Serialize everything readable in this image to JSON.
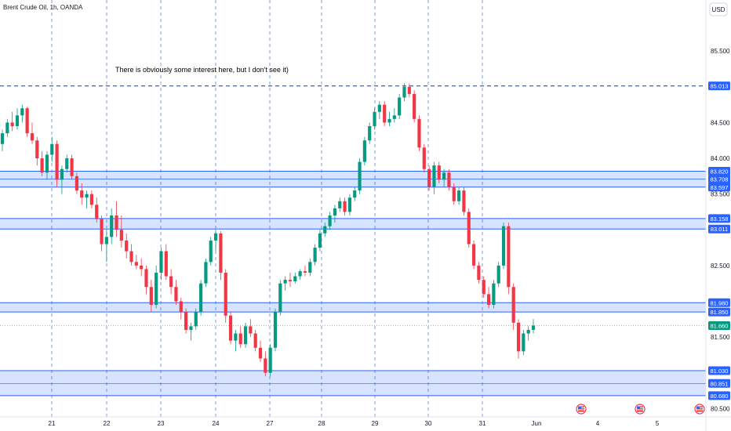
{
  "chart_data": {
    "type": "candlestick",
    "title": "Brent Crude Oil, 1h, OANDA",
    "currency": "USD",
    "annotation": "There is obviously some interest here, but I don't see it)",
    "x_ticks": [
      "21",
      "22",
      "23",
      "24",
      "27",
      "28",
      "29",
      "30",
      "31",
      "Jun",
      "4",
      "5"
    ],
    "y_ticks": [
      "80.500",
      "81.500",
      "82.500",
      "83.500",
      "84.000",
      "84.500",
      "85.500"
    ],
    "ylim": [
      80.35,
      86.05
    ],
    "levels": {
      "dashed": {
        "value": 85.013,
        "label": "85.013"
      },
      "zones": [
        {
          "top": 83.82,
          "bottom": 83.597,
          "mid": 83.708,
          "labels": [
            "83.820",
            "83.708",
            "83.597"
          ]
        },
        {
          "top": 83.158,
          "bottom": 83.011,
          "labels": [
            "83.158",
            "83.011"
          ]
        },
        {
          "top": 81.98,
          "bottom": 81.85,
          "labels": [
            "81.980",
            "81.850"
          ]
        },
        {
          "top": 81.03,
          "bottom": 80.68,
          "mid": 80.851,
          "labels": [
            "81.030",
            "80.851",
            "80.680"
          ]
        }
      ]
    },
    "last_price": {
      "value": 81.66,
      "label": "81.660"
    },
    "events_count": 3,
    "candles": [
      [
        84.2,
        84.4,
        84.1,
        84.35
      ],
      [
        84.35,
        84.55,
        84.3,
        84.5
      ],
      [
        84.5,
        84.65,
        84.38,
        84.45
      ],
      [
        84.45,
        84.7,
        84.4,
        84.6
      ],
      [
        84.6,
        84.75,
        84.5,
        84.7
      ],
      [
        84.7,
        84.72,
        84.3,
        84.35
      ],
      [
        84.35,
        84.5,
        84.2,
        84.25
      ],
      [
        84.25,
        84.3,
        83.9,
        84.0
      ],
      [
        84.0,
        84.1,
        83.75,
        83.8
      ],
      [
        83.8,
        84.1,
        83.7,
        84.05
      ],
      [
        84.05,
        84.3,
        83.95,
        84.2
      ],
      [
        84.2,
        84.25,
        83.6,
        83.7
      ],
      [
        83.7,
        83.9,
        83.5,
        83.85
      ],
      [
        83.85,
        84.05,
        83.8,
        84.0
      ],
      [
        84.0,
        84.05,
        83.7,
        83.75
      ],
      [
        83.75,
        83.8,
        83.5,
        83.55
      ],
      [
        83.55,
        83.65,
        83.35,
        83.45
      ],
      [
        83.45,
        83.55,
        83.3,
        83.5
      ],
      [
        83.5,
        83.55,
        83.3,
        83.35
      ],
      [
        83.35,
        83.45,
        83.1,
        83.15
      ],
      [
        83.15,
        83.2,
        82.7,
        82.8
      ],
      [
        82.8,
        83.0,
        82.55,
        82.9
      ],
      [
        82.9,
        83.3,
        82.8,
        83.2
      ],
      [
        83.2,
        83.4,
        82.9,
        83.0
      ],
      [
        83.0,
        83.2,
        82.75,
        82.85
      ],
      [
        82.85,
        82.95,
        82.6,
        82.7
      ],
      [
        82.7,
        82.8,
        82.5,
        82.55
      ],
      [
        82.55,
        82.65,
        82.45,
        82.5
      ],
      [
        82.5,
        82.6,
        82.35,
        82.45
      ],
      [
        82.45,
        82.5,
        82.1,
        82.2
      ],
      [
        82.2,
        82.3,
        81.85,
        81.95
      ],
      [
        81.95,
        82.5,
        81.9,
        82.4
      ],
      [
        82.4,
        82.75,
        82.3,
        82.7
      ],
      [
        82.7,
        82.8,
        82.3,
        82.35
      ],
      [
        82.35,
        82.45,
        82.1,
        82.2
      ],
      [
        82.2,
        82.3,
        81.95,
        82.0
      ],
      [
        82.0,
        82.05,
        81.75,
        81.85
      ],
      [
        81.85,
        81.9,
        81.55,
        81.6
      ],
      [
        81.6,
        81.7,
        81.45,
        81.65
      ],
      [
        81.65,
        81.9,
        81.6,
        81.85
      ],
      [
        81.85,
        82.3,
        81.8,
        82.25
      ],
      [
        82.25,
        82.6,
        82.2,
        82.55
      ],
      [
        82.55,
        82.9,
        82.5,
        82.85
      ],
      [
        82.85,
        83.0,
        82.7,
        82.95
      ],
      [
        82.95,
        82.98,
        82.3,
        82.4
      ],
      [
        82.4,
        82.45,
        81.7,
        81.8
      ],
      [
        81.8,
        81.85,
        81.4,
        81.45
      ],
      [
        81.45,
        81.6,
        81.3,
        81.55
      ],
      [
        81.55,
        81.65,
        81.35,
        81.4
      ],
      [
        81.4,
        81.7,
        81.35,
        81.65
      ],
      [
        81.65,
        81.75,
        81.5,
        81.55
      ],
      [
        81.55,
        81.6,
        81.3,
        81.35
      ],
      [
        81.35,
        81.45,
        81.15,
        81.2
      ],
      [
        81.2,
        81.3,
        80.95,
        81.0
      ],
      [
        81.0,
        81.4,
        80.95,
        81.35
      ],
      [
        81.35,
        81.9,
        81.3,
        81.85
      ],
      [
        81.85,
        82.3,
        81.8,
        82.25
      ],
      [
        82.25,
        82.35,
        82.15,
        82.3
      ],
      [
        82.3,
        82.4,
        82.2,
        82.28
      ],
      [
        82.28,
        82.4,
        82.25,
        82.35
      ],
      [
        82.35,
        82.45,
        82.3,
        82.42
      ],
      [
        82.42,
        82.5,
        82.35,
        82.4
      ],
      [
        82.4,
        82.6,
        82.35,
        82.55
      ],
      [
        82.55,
        82.8,
        82.5,
        82.75
      ],
      [
        82.75,
        83.0,
        82.7,
        82.95
      ],
      [
        82.95,
        83.1,
        82.9,
        83.05
      ],
      [
        83.05,
        83.25,
        83.0,
        83.2
      ],
      [
        83.2,
        83.35,
        83.1,
        83.3
      ],
      [
        83.3,
        83.45,
        83.25,
        83.4
      ],
      [
        83.4,
        83.45,
        83.2,
        83.25
      ],
      [
        83.25,
        83.5,
        83.2,
        83.45
      ],
      [
        83.45,
        83.6,
        83.4,
        83.55
      ],
      [
        83.55,
        84.0,
        83.5,
        83.95
      ],
      [
        83.95,
        84.3,
        83.9,
        84.25
      ],
      [
        84.25,
        84.5,
        84.2,
        84.45
      ],
      [
        84.45,
        84.7,
        84.4,
        84.65
      ],
      [
        84.65,
        84.8,
        84.55,
        84.75
      ],
      [
        84.75,
        84.8,
        84.45,
        84.5
      ],
      [
        84.5,
        84.65,
        84.45,
        84.55
      ],
      [
        84.55,
        84.7,
        84.5,
        84.6
      ],
      [
        84.6,
        84.9,
        84.55,
        84.85
      ],
      [
        84.85,
        85.05,
        84.8,
        85.0
      ],
      [
        85.0,
        85.05,
        84.85,
        84.9
      ],
      [
        84.9,
        84.95,
        84.5,
        84.55
      ],
      [
        84.55,
        84.6,
        84.1,
        84.15
      ],
      [
        84.15,
        84.2,
        83.8,
        83.85
      ],
      [
        83.85,
        83.9,
        83.55,
        83.6
      ],
      [
        83.6,
        83.95,
        83.5,
        83.9
      ],
      [
        83.9,
        83.95,
        83.65,
        83.7
      ],
      [
        83.7,
        83.85,
        83.6,
        83.8
      ],
      [
        83.8,
        83.85,
        83.55,
        83.6
      ],
      [
        83.6,
        83.65,
        83.35,
        83.4
      ],
      [
        83.4,
        83.6,
        83.35,
        83.55
      ],
      [
        83.55,
        83.6,
        83.2,
        83.25
      ],
      [
        83.25,
        83.3,
        82.75,
        82.8
      ],
      [
        82.8,
        82.85,
        82.45,
        82.5
      ],
      [
        82.5,
        82.55,
        82.25,
        82.3
      ],
      [
        82.3,
        82.35,
        82.05,
        82.1
      ],
      [
        82.1,
        82.2,
        81.9,
        81.95
      ],
      [
        81.95,
        82.3,
        81.9,
        82.25
      ],
      [
        82.25,
        82.55,
        82.2,
        82.5
      ],
      [
        82.5,
        83.1,
        82.45,
        83.05
      ],
      [
        83.05,
        83.1,
        82.1,
        82.2
      ],
      [
        82.2,
        82.25,
        81.6,
        81.7
      ],
      [
        81.7,
        81.75,
        81.2,
        81.3
      ],
      [
        81.3,
        81.6,
        81.25,
        81.55
      ],
      [
        81.55,
        81.65,
        81.45,
        81.6
      ],
      [
        81.6,
        81.75,
        81.55,
        81.66
      ]
    ]
  }
}
